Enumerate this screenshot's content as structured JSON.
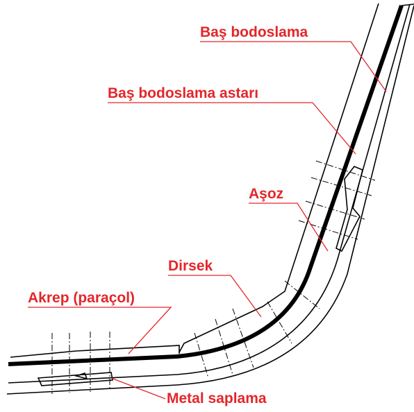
{
  "labels": [
    "Baş bodoslama",
    "Baş bodoslama astarı",
    "Aşoz",
    "Dirsek",
    "Akrep (paraçol)",
    "Metal saplama"
  ]
}
